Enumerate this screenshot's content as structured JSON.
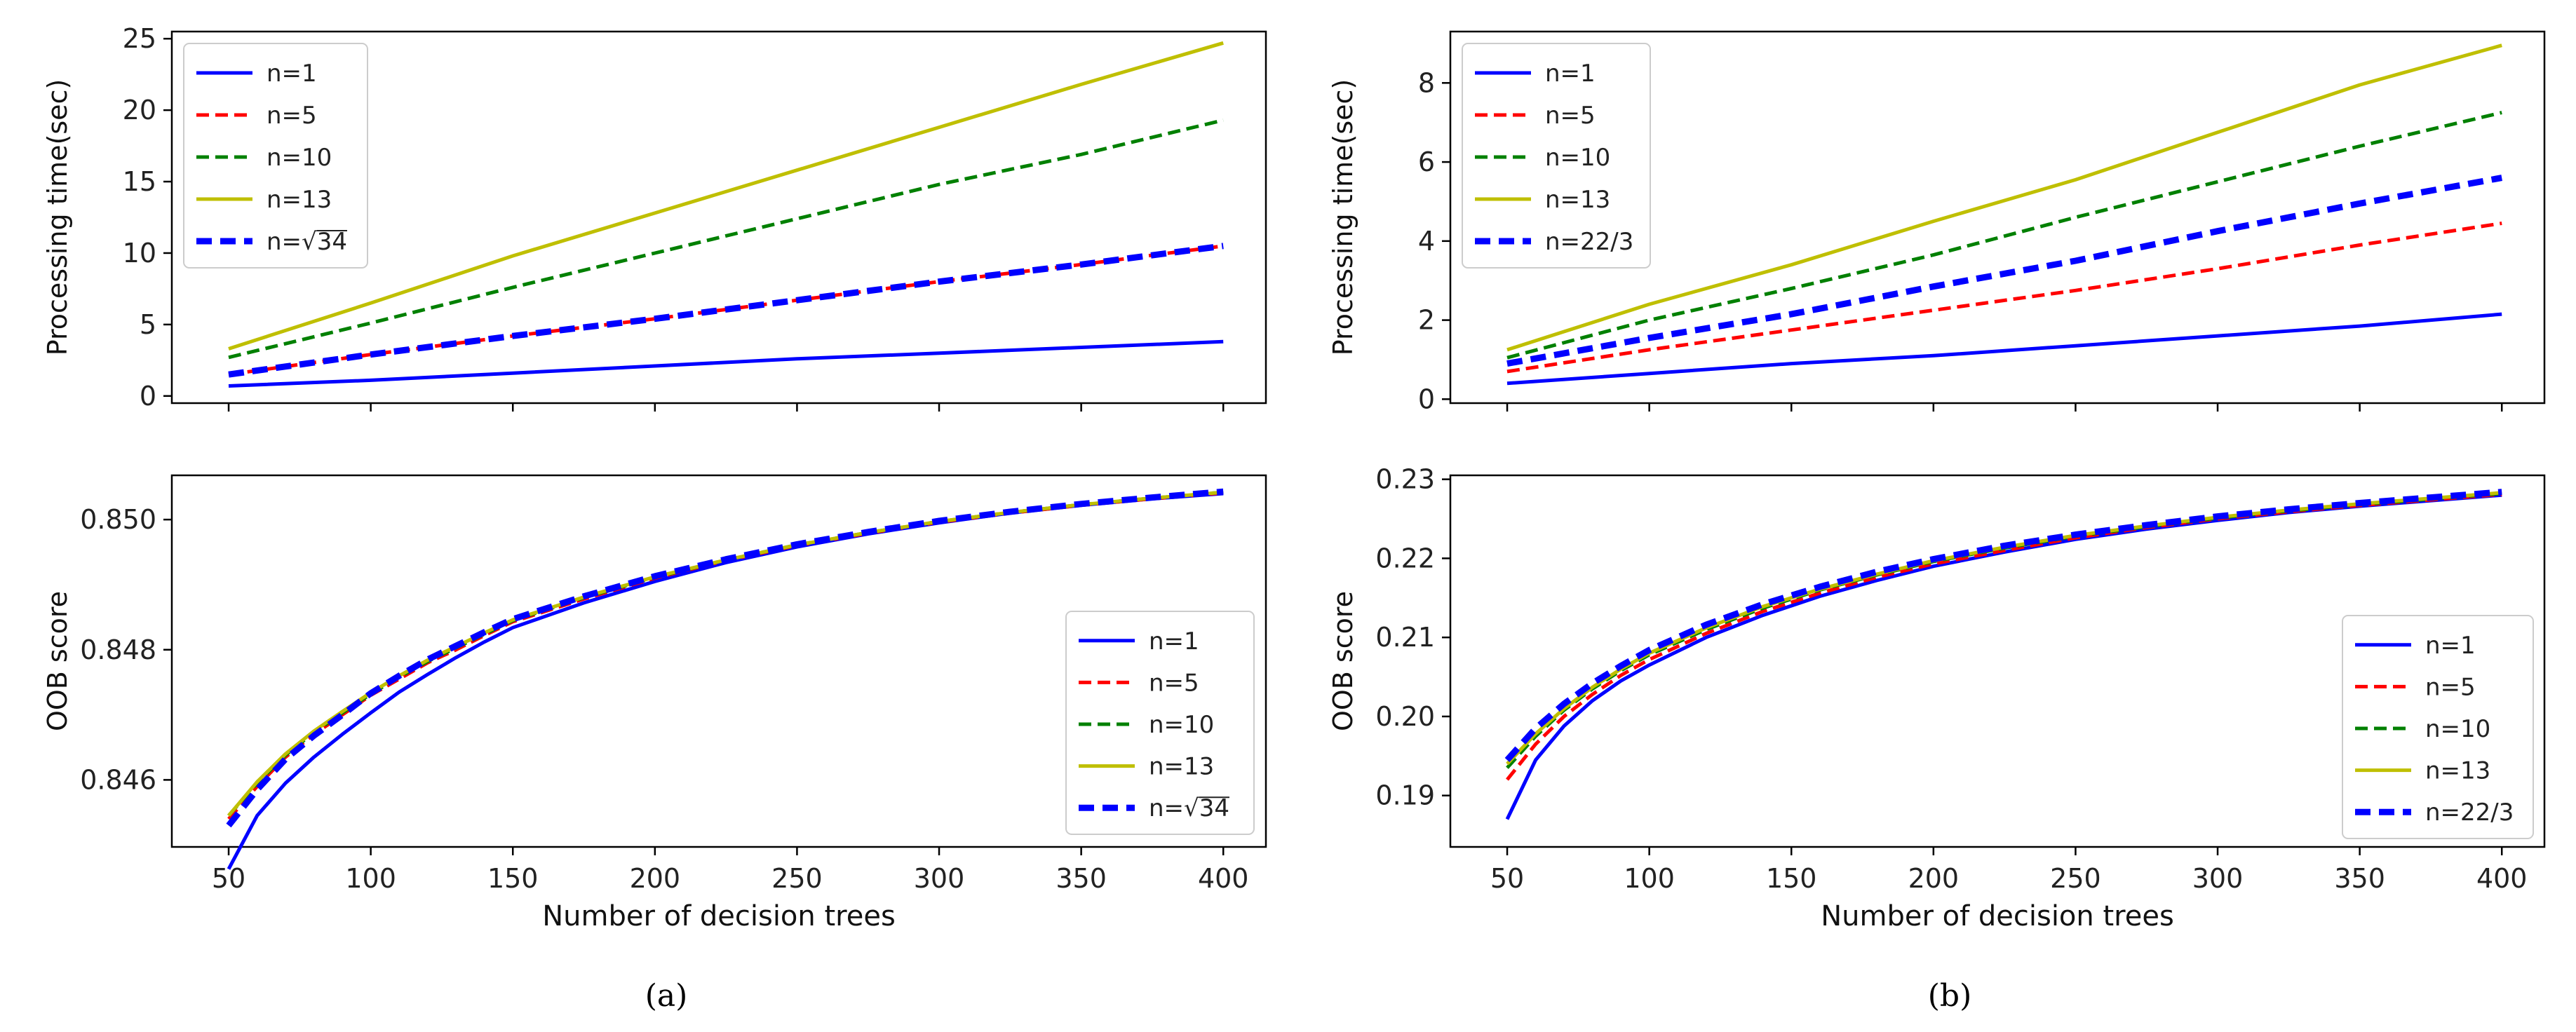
{
  "panels": [
    {
      "caption": "(a)"
    },
    {
      "caption": "(b)"
    }
  ],
  "colors": {
    "n1": "#0000ff",
    "n5": "#ff0000",
    "n10": "#008000",
    "n13": "#bfbf00",
    "nlast": "#0000ff"
  },
  "chart_data": [
    {
      "type": "line",
      "panel": "a-top",
      "title": "",
      "xlabel": "",
      "ylabel": "Processing time(sec)",
      "xlim": [
        30,
        415
      ],
      "ylim": [
        -0.5,
        25.5
      ],
      "xticks": [
        50,
        100,
        150,
        200,
        250,
        300,
        350,
        400
      ],
      "xtick_labels_shown": false,
      "yticks": [
        0,
        5,
        10,
        15,
        20,
        25
      ],
      "ytick_labels": [
        "0",
        "5",
        "10",
        "15",
        "20",
        "25"
      ],
      "legend_position": "top-left",
      "x": [
        50,
        100,
        150,
        200,
        250,
        300,
        350,
        400
      ],
      "series": [
        {
          "name": "n=1",
          "style": "solid",
          "color_key": "n1",
          "values": [
            0.7,
            1.1,
            1.6,
            2.1,
            2.6,
            3.0,
            3.4,
            3.8
          ]
        },
        {
          "name": "n=5",
          "style": "dashed",
          "color_key": "n5",
          "values": [
            1.5,
            2.9,
            4.2,
            5.4,
            6.7,
            8.0,
            9.2,
            10.5
          ]
        },
        {
          "name": "n=10",
          "style": "dashed",
          "color_key": "n10",
          "values": [
            2.7,
            5.1,
            7.6,
            10.0,
            12.4,
            14.8,
            16.9,
            19.3
          ]
        },
        {
          "name": "n=13",
          "style": "solid",
          "color_key": "n13",
          "values": [
            3.3,
            6.5,
            9.8,
            12.8,
            15.8,
            18.8,
            21.8,
            24.7
          ]
        },
        {
          "name": "n=√34",
          "style": "dashed-thick",
          "color_key": "nlast",
          "values": [
            1.5,
            2.9,
            4.2,
            5.4,
            6.7,
            8.0,
            9.2,
            10.5
          ]
        }
      ]
    },
    {
      "type": "line",
      "panel": "a-bottom",
      "title": "",
      "xlabel": "Number of decision trees",
      "ylabel": "OOB score",
      "xlim": [
        30,
        415
      ],
      "ylim": [
        0.84497,
        0.85068
      ],
      "xticks": [
        50,
        100,
        150,
        200,
        250,
        300,
        350,
        400
      ],
      "xtick_labels": [
        "50",
        "100",
        "150",
        "200",
        "250",
        "300",
        "350",
        "400"
      ],
      "yticks": [
        0.846,
        0.848,
        0.85
      ],
      "ytick_labels": [
        "0.846",
        "0.848",
        "0.850"
      ],
      "legend_position": "center-right",
      "x": [
        50,
        60,
        70,
        80,
        90,
        100,
        110,
        120,
        130,
        140,
        150,
        175,
        200,
        225,
        250,
        275,
        300,
        325,
        350,
        375,
        400
      ],
      "series": [
        {
          "name": "n=1",
          "style": "solid",
          "color_key": "n1",
          "values": [
            0.84463,
            0.84545,
            0.84595,
            0.84635,
            0.8467,
            0.84703,
            0.84735,
            0.84762,
            0.84788,
            0.84812,
            0.84834,
            0.84872,
            0.84905,
            0.84934,
            0.84958,
            0.84978,
            0.84995,
            0.8501,
            0.85022,
            0.85032,
            0.8504
          ]
        },
        {
          "name": "n=5",
          "style": "dashed",
          "color_key": "n5",
          "values": [
            0.8454,
            0.8459,
            0.84635,
            0.8467,
            0.847,
            0.8473,
            0.84755,
            0.8478,
            0.848,
            0.84822,
            0.84843,
            0.84878,
            0.8491,
            0.84937,
            0.8496,
            0.84979,
            0.84996,
            0.8501,
            0.85022,
            0.85032,
            0.85041
          ]
        },
        {
          "name": "n=10",
          "style": "dashed",
          "color_key": "n10",
          "values": [
            0.84545,
            0.84595,
            0.84638,
            0.84673,
            0.84703,
            0.84732,
            0.84758,
            0.84782,
            0.84803,
            0.84824,
            0.84845,
            0.8488,
            0.84911,
            0.84938,
            0.84961,
            0.8498,
            0.84997,
            0.85011,
            0.85023,
            0.85033,
            0.85042
          ]
        },
        {
          "name": "n=13",
          "style": "solid",
          "color_key": "n13",
          "values": [
            0.84545,
            0.84597,
            0.8464,
            0.84675,
            0.84705,
            0.84734,
            0.8476,
            0.84784,
            0.84805,
            0.84826,
            0.84846,
            0.84881,
            0.84912,
            0.84938,
            0.84961,
            0.8498,
            0.84997,
            0.85011,
            0.85023,
            0.85033,
            0.85042
          ]
        },
        {
          "name": "n=√34",
          "style": "dashed-thick",
          "color_key": "nlast",
          "values": [
            0.8453,
            0.84585,
            0.84632,
            0.84668,
            0.847,
            0.84733,
            0.8476,
            0.84785,
            0.84806,
            0.84827,
            0.84847,
            0.84882,
            0.84913,
            0.84939,
            0.84962,
            0.84981,
            0.84998,
            0.85012,
            0.85024,
            0.85034,
            0.85043
          ]
        }
      ]
    },
    {
      "type": "line",
      "panel": "b-top",
      "title": "",
      "xlabel": "",
      "ylabel": "Processing time(sec)",
      "xlim": [
        30,
        415
      ],
      "ylim": [
        -0.1,
        9.3
      ],
      "xticks": [
        50,
        100,
        150,
        200,
        250,
        300,
        350,
        400
      ],
      "xtick_labels_shown": false,
      "yticks": [
        0,
        2,
        4,
        6,
        8
      ],
      "ytick_labels": [
        "0",
        "2",
        "4",
        "6",
        "8"
      ],
      "legend_position": "top-left",
      "x": [
        50,
        100,
        150,
        200,
        250,
        300,
        350,
        400
      ],
      "series": [
        {
          "name": "n=1",
          "style": "solid",
          "color_key": "n1",
          "values": [
            0.4,
            0.65,
            0.9,
            1.1,
            1.35,
            1.6,
            1.85,
            2.15
          ]
        },
        {
          "name": "n=5",
          "style": "dashed",
          "color_key": "n5",
          "values": [
            0.7,
            1.25,
            1.75,
            2.25,
            2.75,
            3.3,
            3.9,
            4.45
          ]
        },
        {
          "name": "n=10",
          "style": "dashed",
          "color_key": "n10",
          "values": [
            1.05,
            2.0,
            2.8,
            3.65,
            4.6,
            5.5,
            6.4,
            7.25
          ]
        },
        {
          "name": "n=13",
          "style": "solid",
          "color_key": "n13",
          "values": [
            1.25,
            2.4,
            3.4,
            4.5,
            5.55,
            6.75,
            7.95,
            8.95
          ]
        },
        {
          "name": "n=22/3",
          "style": "dashed-thick",
          "color_key": "nlast",
          "values": [
            0.9,
            1.55,
            2.15,
            2.85,
            3.5,
            4.25,
            4.95,
            5.6
          ]
        }
      ]
    },
    {
      "type": "line",
      "panel": "b-bottom",
      "title": "",
      "xlabel": "Number of decision trees",
      "ylabel": "OOB score",
      "xlim": [
        30,
        415
      ],
      "ylim": [
        0.1835,
        0.2305
      ],
      "xticks": [
        50,
        100,
        150,
        200,
        250,
        300,
        350,
        400
      ],
      "xtick_labels": [
        "50",
        "100",
        "150",
        "200",
        "250",
        "300",
        "350",
        "400"
      ],
      "yticks": [
        0.19,
        0.2,
        0.21,
        0.22,
        0.23
      ],
      "ytick_labels": [
        "0.19",
        "0.20",
        "0.21",
        "0.22",
        "0.23"
      ],
      "legend_position": "lower-right",
      "x": [
        50,
        60,
        70,
        80,
        90,
        100,
        120,
        140,
        160,
        180,
        200,
        225,
        250,
        275,
        300,
        325,
        350,
        375,
        400
      ],
      "series": [
        {
          "name": "n=1",
          "style": "solid",
          "color_key": "n1",
          "values": [
            0.187,
            0.1945,
            0.1988,
            0.202,
            0.2045,
            0.2065,
            0.21,
            0.2128,
            0.2152,
            0.2172,
            0.219,
            0.2208,
            0.2224,
            0.2237,
            0.2248,
            0.2258,
            0.2266,
            0.2273,
            0.228
          ]
        },
        {
          "name": "n=5",
          "style": "dashed",
          "color_key": "n5",
          "values": [
            0.192,
            0.1965,
            0.2,
            0.2028,
            0.2052,
            0.2072,
            0.2105,
            0.2133,
            0.2156,
            0.2176,
            0.2193,
            0.221,
            0.2226,
            0.2239,
            0.225,
            0.2259,
            0.2267,
            0.2274,
            0.2281
          ]
        },
        {
          "name": "n=10",
          "style": "dashed",
          "color_key": "n10",
          "values": [
            0.1935,
            0.1975,
            0.2008,
            0.2035,
            0.2058,
            0.2078,
            0.211,
            0.2137,
            0.216,
            0.2179,
            0.2196,
            0.2213,
            0.2228,
            0.224,
            0.2251,
            0.226,
            0.2268,
            0.2275,
            0.2282
          ]
        },
        {
          "name": "n=13",
          "style": "solid",
          "color_key": "n13",
          "values": [
            0.194,
            0.1978,
            0.201,
            0.2037,
            0.206,
            0.208,
            0.2112,
            0.2139,
            0.2161,
            0.218,
            0.2197,
            0.2214,
            0.2229,
            0.2241,
            0.2252,
            0.2261,
            0.2269,
            0.2276,
            0.2283
          ]
        },
        {
          "name": "n=22/3",
          "style": "dashed-thick",
          "color_key": "nlast",
          "values": [
            0.1945,
            0.1985,
            0.2016,
            0.2042,
            0.2064,
            0.2084,
            0.2116,
            0.2142,
            0.2164,
            0.2183,
            0.2199,
            0.2216,
            0.223,
            0.2242,
            0.2253,
            0.2262,
            0.227,
            0.2277,
            0.2284
          ]
        }
      ]
    }
  ]
}
